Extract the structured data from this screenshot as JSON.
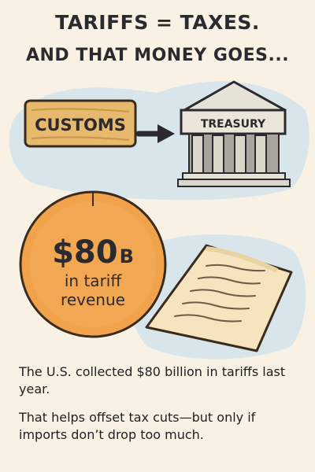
{
  "header": {
    "line1": "TARIFFS = TAXES.",
    "line2": "AND THAT MONEY GOES..."
  },
  "flow": {
    "source_label": "CUSTOMS",
    "destination_label": "TREASURY",
    "arrow_icon": "arrow-right-icon",
    "building_icon": "treasury-building-icon"
  },
  "revenue_circle": {
    "amount": "$80",
    "unit": "B",
    "line2": "in tariff",
    "line3": "revenue"
  },
  "document": {
    "icon": "paper-document-icon"
  },
  "body": {
    "paragraph1": "The U.S. collected $80 billion in tariffs last year.",
    "paragraph2": "That helps offset tax cuts—but only if imports don’t drop too much."
  },
  "colors": {
    "background": "#f8f1e4",
    "sign_wood": "#e6b86b",
    "circle_orange": "#f0a14a",
    "wash_blue": "#cfe1ea",
    "ink": "#2b2a2f"
  }
}
